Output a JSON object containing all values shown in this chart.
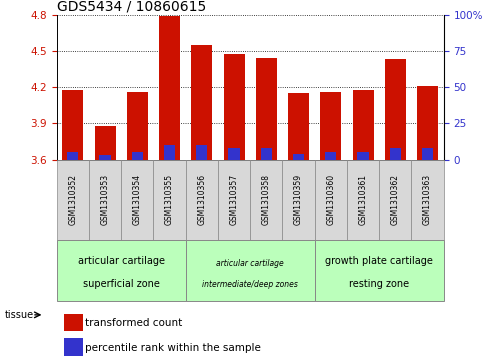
{
  "title": "GDS5434 / 10860615",
  "samples": [
    "GSM1310352",
    "GSM1310353",
    "GSM1310354",
    "GSM1310355",
    "GSM1310356",
    "GSM1310357",
    "GSM1310358",
    "GSM1310359",
    "GSM1310360",
    "GSM1310361",
    "GSM1310362",
    "GSM1310363"
  ],
  "red_values": [
    4.18,
    3.88,
    4.16,
    4.79,
    4.55,
    4.47,
    4.44,
    4.15,
    4.16,
    4.18,
    4.43,
    4.21
  ],
  "blue_values_pct": [
    5,
    3,
    5,
    10,
    10,
    8,
    8,
    4,
    5,
    5,
    8,
    8
  ],
  "ymin": 3.6,
  "ymax": 4.8,
  "y2min": 0,
  "y2max": 100,
  "yticks": [
    3.6,
    3.9,
    4.2,
    4.5,
    4.8
  ],
  "y2ticks": [
    0,
    25,
    50,
    75,
    100
  ],
  "bar_color_red": "#cc1100",
  "bar_color_blue": "#3333cc",
  "bar_width": 0.65,
  "blue_bar_width": 0.35,
  "tissue_groups": [
    {
      "label": "articular cartilage\nsuperficial zone",
      "start": 0,
      "end": 3,
      "color": "#bbffbb"
    },
    {
      "label": "articular cartilage\nintermediate/deep zones",
      "start": 4,
      "end": 7,
      "color": "#bbffbb"
    },
    {
      "label": "growth plate cartilage\nresting zone",
      "start": 8,
      "end": 11,
      "color": "#bbffbb"
    }
  ],
  "legend_red": "transformed count",
  "legend_blue": "percentile rank within the sample",
  "tissue_label": "tissue",
  "bg_color": "#d8d8d8",
  "plot_bg": "#ffffff",
  "title_fontsize": 10,
  "tick_fontsize": 7.5,
  "sample_fontsize": 5.5,
  "tissue_fontsize": 7,
  "legend_fontsize": 7.5
}
